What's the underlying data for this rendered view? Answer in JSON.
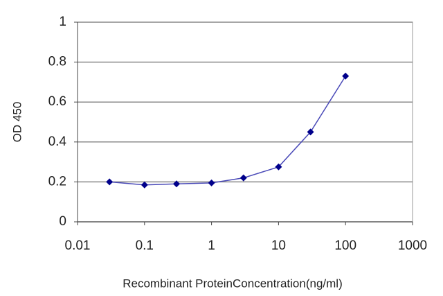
{
  "chart_data": {
    "type": "line",
    "x_label": "Recombinant ProteinConcentration(ng/ml)",
    "y_label": "OD 450",
    "xscale": "log",
    "x": [
      0.03,
      0.1,
      0.3,
      1,
      3,
      10,
      30,
      100
    ],
    "series": [
      {
        "color": "#00008b",
        "line_color": "#4a4ab8",
        "values": [
          0.2,
          0.185,
          0.19,
          0.195,
          0.22,
          0.275,
          0.45,
          0.73
        ]
      }
    ],
    "xlim": [
      0.01,
      1000
    ],
    "xticks": [
      0.01,
      0.1,
      1,
      10,
      100,
      1000
    ],
    "ylim": [
      0,
      1
    ],
    "yticks": [
      0,
      0.2,
      0.4,
      0.6,
      0.8,
      1
    ],
    "grid": true
  }
}
